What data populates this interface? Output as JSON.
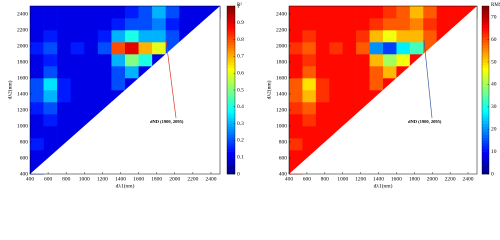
{
  "chart_data": [
    {
      "type": "heatmap",
      "colorbar_label": "R²",
      "x_label": "dλ1(nm)",
      "y_label": "dλ2(nm)",
      "annotation": "dND (1900, 2095)",
      "annotation_color": "#d9342b",
      "colormap": "jet",
      "xlim": [
        400,
        2500
      ],
      "ylim": [
        400,
        2500
      ],
      "xticks": [
        400,
        600,
        800,
        1000,
        1200,
        1400,
        1600,
        1800,
        2000,
        2200,
        2400
      ],
      "yticks": [
        400,
        600,
        800,
        1000,
        1200,
        1400,
        1600,
        1800,
        2000,
        2200,
        2400
      ],
      "xbins": [
        400,
        550,
        700,
        850,
        1000,
        1150,
        1300,
        1450,
        1600,
        1750,
        1900,
        2050,
        2200,
        2350,
        2500
      ],
      "ybins": [
        400,
        550,
        700,
        850,
        1000,
        1150,
        1300,
        1450,
        1600,
        1750,
        1900,
        2050,
        2200,
        2350,
        2500
      ],
      "zlim": [
        0,
        1
      ],
      "zticks": [
        0,
        0.1,
        0.2,
        0.3,
        0.4,
        0.5,
        0.6,
        0.7,
        0.8,
        0.9,
        1
      ],
      "z": [
        [
          0.1,
          null,
          null,
          null,
          null,
          null,
          null,
          null,
          null,
          null,
          null,
          null,
          null,
          null
        ],
        [
          0.1,
          0.1,
          null,
          null,
          null,
          null,
          null,
          null,
          null,
          null,
          null,
          null,
          null,
          null
        ],
        [
          0.15,
          0.1,
          0.1,
          null,
          null,
          null,
          null,
          null,
          null,
          null,
          null,
          null,
          null,
          null
        ],
        [
          0.1,
          0.1,
          0.1,
          0.1,
          null,
          null,
          null,
          null,
          null,
          null,
          null,
          null,
          null,
          null
        ],
        [
          0.1,
          0.15,
          0.1,
          0.1,
          0.1,
          null,
          null,
          null,
          null,
          null,
          null,
          null,
          null,
          null
        ],
        [
          0.15,
          0.2,
          0.1,
          0.1,
          0.1,
          0.1,
          null,
          null,
          null,
          null,
          null,
          null,
          null,
          null
        ],
        [
          0.2,
          0.3,
          0.15,
          0.1,
          0.1,
          0.1,
          0.1,
          null,
          null,
          null,
          null,
          null,
          null,
          null
        ],
        [
          0.2,
          0.35,
          0.15,
          0.1,
          0.1,
          0.1,
          0.2,
          0.1,
          null,
          null,
          null,
          null,
          null,
          null
        ],
        [
          0.1,
          0.2,
          0.1,
          0.1,
          0.1,
          0.1,
          0.2,
          0.3,
          0.1,
          null,
          null,
          null,
          null,
          null
        ],
        [
          0.1,
          0.15,
          0.1,
          0.1,
          0.1,
          0.1,
          0.3,
          0.5,
          0.4,
          0.1,
          null,
          null,
          null,
          null
        ],
        [
          0.15,
          0.2,
          0.1,
          0.15,
          0.1,
          0.2,
          0.8,
          0.9,
          0.7,
          0.6,
          0.2,
          null,
          null,
          null
        ],
        [
          0.1,
          0.15,
          0.1,
          0.1,
          0.1,
          0.15,
          0.3,
          0.4,
          0.3,
          0.3,
          0.2,
          0.1,
          null,
          null
        ],
        [
          0.1,
          0.1,
          0.1,
          0.1,
          0.1,
          0.1,
          0.15,
          0.2,
          0.2,
          0.25,
          0.15,
          0.1,
          0.1,
          null
        ],
        [
          0.1,
          0.1,
          0.1,
          0.1,
          0.1,
          0.1,
          0.1,
          0.15,
          0.2,
          0.3,
          0.2,
          0.1,
          0.1,
          0.1
        ]
      ]
    },
    {
      "type": "heatmap",
      "colorbar_label": "RMSE(%)",
      "x_label": "dλ1(nm)",
      "y_label": "dλ2(nm)",
      "annotation": "dND (1900, 2095)",
      "annotation_color": "#3b5aa8",
      "colormap": "jet",
      "xlim": [
        400,
        2500
      ],
      "ylim": [
        400,
        2500
      ],
      "xticks": [
        400,
        600,
        800,
        1000,
        1200,
        1400,
        1600,
        1800,
        2000,
        2200,
        2400
      ],
      "yticks": [
        400,
        600,
        800,
        1000,
        1200,
        1400,
        1600,
        1800,
        2000,
        2200,
        2400
      ],
      "xbins": [
        400,
        550,
        700,
        850,
        1000,
        1150,
        1300,
        1450,
        1600,
        1750,
        1900,
        2050,
        2200,
        2350,
        2500
      ],
      "ybins": [
        400,
        550,
        700,
        850,
        1000,
        1150,
        1300,
        1450,
        1600,
        1750,
        1900,
        2050,
        2200,
        2350,
        2500
      ],
      "zlim": [
        0,
        75
      ],
      "zticks": [
        0,
        10,
        20,
        30,
        40,
        50,
        60,
        70
      ],
      "z": [
        [
          65,
          null,
          null,
          null,
          null,
          null,
          null,
          null,
          null,
          null,
          null,
          null,
          null,
          null
        ],
        [
          65,
          65,
          null,
          null,
          null,
          null,
          null,
          null,
          null,
          null,
          null,
          null,
          null,
          null
        ],
        [
          62,
          65,
          65,
          null,
          null,
          null,
          null,
          null,
          null,
          null,
          null,
          null,
          null,
          null
        ],
        [
          65,
          65,
          65,
          65,
          null,
          null,
          null,
          null,
          null,
          null,
          null,
          null,
          null,
          null
        ],
        [
          65,
          62,
          65,
          65,
          65,
          null,
          null,
          null,
          null,
          null,
          null,
          null,
          null,
          null
        ],
        [
          62,
          59,
          65,
          65,
          65,
          65,
          null,
          null,
          null,
          null,
          null,
          null,
          null,
          null
        ],
        [
          59,
          52,
          62,
          65,
          65,
          65,
          65,
          null,
          null,
          null,
          null,
          null,
          null,
          null
        ],
        [
          59,
          49,
          62,
          65,
          65,
          65,
          59,
          65,
          null,
          null,
          null,
          null,
          null,
          null
        ],
        [
          65,
          59,
          65,
          65,
          65,
          65,
          59,
          52,
          65,
          null,
          null,
          null,
          null,
          null
        ],
        [
          65,
          62,
          65,
          65,
          65,
          65,
          52,
          40,
          46,
          65,
          null,
          null,
          null,
          null
        ],
        [
          62,
          59,
          65,
          62,
          65,
          59,
          20,
          14,
          27,
          33,
          59,
          null,
          null,
          null
        ],
        [
          65,
          62,
          65,
          65,
          65,
          62,
          52,
          46,
          52,
          52,
          59,
          65,
          null,
          null
        ],
        [
          65,
          65,
          65,
          65,
          65,
          65,
          62,
          59,
          59,
          56,
          62,
          65,
          65,
          null
        ],
        [
          65,
          65,
          65,
          65,
          65,
          65,
          65,
          62,
          59,
          52,
          59,
          65,
          65,
          65
        ]
      ]
    }
  ]
}
